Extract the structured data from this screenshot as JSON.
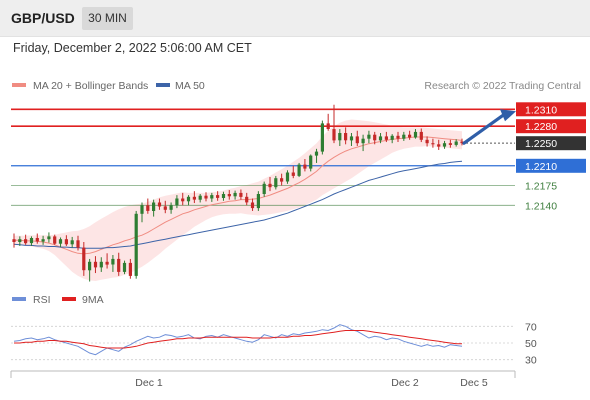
{
  "header": {
    "symbol": "GBP/USD",
    "timeframe": "30 MIN",
    "datetime": "Friday, December 2, 2022 5:06:00 AM CET"
  },
  "colors": {
    "bull": "#2e7d32",
    "bear": "#c62828",
    "ma20": "#f08c82",
    "band_fill": "#fcdcdc",
    "ma50": "#3d64a8",
    "resistance": "#e02020",
    "support": "#3f7f3f",
    "pivot": "#2f6fd6",
    "current": "#333333",
    "rsi": "#6e8fd8",
    "rsi_ma": "#e02020"
  },
  "chart_data": [
    {
      "type": "candlestick",
      "legend": [
        {
          "label": "MA 20 + Bollinger Bands",
          "color": "#f08c82"
        },
        {
          "label": "MA 50",
          "color": "#3d64a8"
        }
      ],
      "credit": "Research © 2022 Trading Central",
      "ylim": [
        1.199,
        1.233
      ],
      "x_labels": [
        "Dec 1",
        "Dec 2",
        "Dec 5"
      ],
      "levels": [
        {
          "value": 1.231,
          "label": "1.2310",
          "kind": "resistance"
        },
        {
          "value": 1.228,
          "label": "1.2280",
          "kind": "resistance"
        },
        {
          "value": 1.225,
          "label": "1.2250",
          "kind": "current"
        },
        {
          "value": 1.221,
          "label": "1.2210",
          "kind": "pivot"
        },
        {
          "value": 1.2175,
          "label": "1.2175",
          "kind": "support"
        },
        {
          "value": 1.214,
          "label": "1.2140",
          "kind": "support"
        }
      ],
      "forecast": {
        "from": 1.225,
        "to": 1.231
      },
      "ohlc": [
        [
          1.208,
          1.209,
          1.2065,
          1.2075
        ],
        [
          1.2075,
          1.2085,
          1.2068,
          1.208
        ],
        [
          1.208,
          1.2088,
          1.207,
          1.2073
        ],
        [
          1.2073,
          1.2085,
          1.2068,
          1.2082
        ],
        [
          1.2082,
          1.209,
          1.2072,
          1.2076
        ],
        [
          1.2076,
          1.2086,
          1.207,
          1.208
        ],
        [
          1.208,
          1.2092,
          1.2074,
          1.2085
        ],
        [
          1.2085,
          1.2088,
          1.207,
          1.2072
        ],
        [
          1.2072,
          1.2083,
          1.2066,
          1.208
        ],
        [
          1.208,
          1.2087,
          1.2068,
          1.2071
        ],
        [
          1.2071,
          1.2084,
          1.2065,
          1.2078
        ],
        [
          1.2078,
          1.2086,
          1.206,
          1.2065
        ],
        [
          1.2065,
          1.2075,
          1.2015,
          1.2025
        ],
        [
          1.2025,
          1.2045,
          1.2005,
          1.204
        ],
        [
          1.204,
          1.205,
          1.202,
          1.203
        ],
        [
          1.203,
          1.2048,
          1.2022,
          1.204
        ],
        [
          1.204,
          1.2055,
          1.2028,
          1.2035
        ],
        [
          1.2035,
          1.2052,
          1.2022,
          1.2045
        ],
        [
          1.2045,
          1.2056,
          1.2015,
          1.2022
        ],
        [
          1.2022,
          1.2042,
          1.2018,
          1.2038
        ],
        [
          1.2038,
          1.2045,
          1.201,
          1.2015
        ],
        [
          1.2015,
          1.213,
          1.201,
          1.2125
        ],
        [
          1.2125,
          1.2145,
          1.211,
          1.214
        ],
        [
          1.214,
          1.2152,
          1.2125,
          1.213
        ],
        [
          1.213,
          1.215,
          1.212,
          1.2145
        ],
        [
          1.2145,
          1.2152,
          1.2132,
          1.2138
        ],
        [
          1.2138,
          1.2148,
          1.2126,
          1.2132
        ],
        [
          1.2132,
          1.2145,
          1.2125,
          1.214
        ],
        [
          1.214,
          1.2158,
          1.2135,
          1.2152
        ],
        [
          1.2152,
          1.2162,
          1.214,
          1.2147
        ],
        [
          1.2147,
          1.2158,
          1.214,
          1.2155
        ],
        [
          1.2155,
          1.2165,
          1.2144,
          1.215
        ],
        [
          1.215,
          1.216,
          1.2145,
          1.2157
        ],
        [
          1.2157,
          1.2163,
          1.2147,
          1.2152
        ],
        [
          1.2152,
          1.2162,
          1.2146,
          1.2158
        ],
        [
          1.2158,
          1.2165,
          1.2148,
          1.2153
        ],
        [
          1.2153,
          1.2164,
          1.2148,
          1.216
        ],
        [
          1.216,
          1.2167,
          1.215,
          1.2156
        ],
        [
          1.2156,
          1.2166,
          1.215,
          1.2162
        ],
        [
          1.2162,
          1.2168,
          1.215,
          1.2155
        ],
        [
          1.2155,
          1.2162,
          1.214,
          1.2145
        ],
        [
          1.2145,
          1.2152,
          1.213,
          1.2135
        ],
        [
          1.2135,
          1.2165,
          1.213,
          1.216
        ],
        [
          1.216,
          1.2182,
          1.2155,
          1.2178
        ],
        [
          1.2178,
          1.219,
          1.2165,
          1.2172
        ],
        [
          1.2172,
          1.2192,
          1.2168,
          1.2188
        ],
        [
          1.2188,
          1.2196,
          1.2175,
          1.2182
        ],
        [
          1.2182,
          1.2202,
          1.2178,
          1.2198
        ],
        [
          1.2198,
          1.221,
          1.2188,
          1.2192
        ],
        [
          1.2192,
          1.2215,
          1.219,
          1.2212
        ],
        [
          1.2212,
          1.2222,
          1.22,
          1.2205
        ],
        [
          1.2205,
          1.223,
          1.22,
          1.2228
        ],
        [
          1.2228,
          1.224,
          1.2215,
          1.2235
        ],
        [
          1.2235,
          1.229,
          1.223,
          1.2285
        ],
        [
          1.2285,
          1.2302,
          1.2272,
          1.2275
        ],
        [
          1.2275,
          1.2318,
          1.225,
          1.2255
        ],
        [
          1.2255,
          1.2275,
          1.2245,
          1.2268
        ],
        [
          1.2268,
          1.2278,
          1.2248,
          1.2255
        ],
        [
          1.2255,
          1.2268,
          1.2245,
          1.2262
        ],
        [
          1.2262,
          1.2272,
          1.2245,
          1.225
        ],
        [
          1.225,
          1.2265,
          1.2236,
          1.2258
        ],
        [
          1.2258,
          1.2272,
          1.225,
          1.2265
        ],
        [
          1.2265,
          1.227,
          1.2248,
          1.2255
        ],
        [
          1.2255,
          1.2268,
          1.225,
          1.2262
        ],
        [
          1.2262,
          1.227,
          1.2252,
          1.2256
        ],
        [
          1.2256,
          1.2266,
          1.225,
          1.2263
        ],
        [
          1.2263,
          1.227,
          1.2252,
          1.2258
        ],
        [
          1.2258,
          1.227,
          1.2254,
          1.2265
        ],
        [
          1.2265,
          1.2272,
          1.2256,
          1.226
        ],
        [
          1.226,
          1.2275,
          1.2258,
          1.227
        ],
        [
          1.227,
          1.2276,
          1.2252,
          1.2256
        ],
        [
          1.2256,
          1.2262,
          1.2244,
          1.225
        ],
        [
          1.225,
          1.2258,
          1.2242,
          1.2248
        ],
        [
          1.2248,
          1.2256,
          1.2238,
          1.2244
        ],
        [
          1.2244,
          1.2254,
          1.224,
          1.225
        ],
        [
          1.225,
          1.2256,
          1.2242,
          1.2247
        ],
        [
          1.2247,
          1.2257,
          1.2244,
          1.2253
        ],
        [
          1.2253,
          1.2258,
          1.2246,
          1.225
        ]
      ],
      "ma20": [
        1.2078,
        1.2078,
        1.2077,
        1.2077,
        1.2076,
        1.2075,
        1.2073,
        1.207,
        1.2066,
        1.2062,
        1.2058,
        1.2055,
        1.2054,
        1.2055,
        1.2058,
        1.2062,
        1.2066,
        1.207,
        1.2073,
        1.2077,
        1.208,
        1.2084,
        1.2087,
        1.2092,
        1.2098,
        1.2104,
        1.211,
        1.2115,
        1.212,
        1.2125,
        1.2128,
        1.2132,
        1.2135,
        1.2138,
        1.2141,
        1.2143,
        1.2145,
        1.2147,
        1.2148,
        1.215,
        1.215,
        1.2151,
        1.2152,
        1.2155,
        1.2158,
        1.2162,
        1.2166,
        1.217,
        1.2175,
        1.218,
        1.2186,
        1.2193,
        1.22,
        1.221,
        1.2218,
        1.2225,
        1.2231,
        1.2236,
        1.224,
        1.2243,
        1.2246,
        1.2249,
        1.2251,
        1.2253,
        1.2255,
        1.2257,
        1.2258,
        1.2259,
        1.226,
        1.2261,
        1.2261,
        1.2261,
        1.226,
        1.2259,
        1.2258,
        1.2257,
        1.2256,
        1.2255
      ],
      "band_width": [
        0.0008,
        0.0008,
        0.0009,
        0.001,
        0.0011,
        0.0012,
        0.0014,
        0.0018,
        0.0024,
        0.003,
        0.0036,
        0.004,
        0.0044,
        0.0048,
        0.0052,
        0.0054,
        0.0056,
        0.0058,
        0.006,
        0.006,
        0.006,
        0.0058,
        0.0056,
        0.0054,
        0.0052,
        0.005,
        0.0047,
        0.0044,
        0.0041,
        0.0038,
        0.0034,
        0.003,
        0.0027,
        0.0024,
        0.0022,
        0.0021,
        0.0021,
        0.0022,
        0.0023,
        0.0024,
        0.0026,
        0.0028,
        0.003,
        0.0032,
        0.0034,
        0.0036,
        0.0038,
        0.004,
        0.0042,
        0.0044,
        0.0046,
        0.0048,
        0.005,
        0.0052,
        0.0054,
        0.0055,
        0.0055,
        0.0054,
        0.0052,
        0.0048,
        0.0044,
        0.004,
        0.0036,
        0.0032,
        0.0028,
        0.0024,
        0.0021,
        0.0019,
        0.0018,
        0.0017,
        0.0017,
        0.0016,
        0.0016,
        0.0016,
        0.0016,
        0.0016,
        0.0016,
        0.0016
      ],
      "ma50": [
        1.2071,
        1.207,
        1.2069,
        1.2069,
        1.2068,
        1.2068,
        1.2067,
        1.2067,
        1.2066,
        1.2066,
        1.2065,
        1.2065,
        1.2064,
        1.2064,
        1.2064,
        1.2064,
        1.2065,
        1.2065,
        1.2066,
        1.2067,
        1.2068,
        1.207,
        1.2072,
        1.2074,
        1.2076,
        1.2078,
        1.208,
        1.2082,
        1.2084,
        1.2086,
        1.2088,
        1.209,
        1.2092,
        1.2094,
        1.2096,
        1.2098,
        1.21,
        1.2102,
        1.2104,
        1.2106,
        1.2108,
        1.211,
        1.2112,
        1.2114,
        1.2117,
        1.212,
        1.2123,
        1.2126,
        1.213,
        1.2134,
        1.2138,
        1.2142,
        1.2146,
        1.215,
        1.2155,
        1.216,
        1.2164,
        1.2168,
        1.2172,
        1.2176,
        1.218,
        1.2184,
        1.2187,
        1.219,
        1.2193,
        1.2196,
        1.2199,
        1.2201,
        1.2203,
        1.2205,
        1.2207,
        1.2209,
        1.2211,
        1.2213,
        1.2214,
        1.2216,
        1.2217,
        1.2218
      ]
    },
    {
      "type": "line",
      "legend": [
        {
          "label": "RSI",
          "color": "#6e8fd8"
        },
        {
          "label": "9MA",
          "color": "#e02020"
        }
      ],
      "ylim": [
        20,
        80
      ],
      "y_ticks": [
        70,
        50,
        30
      ],
      "series": [
        {
          "name": "RSI",
          "values": [
            52,
            53,
            55,
            56,
            54,
            55,
            57,
            54,
            52,
            50,
            48,
            46,
            42,
            38,
            36,
            40,
            44,
            42,
            40,
            45,
            48,
            52,
            55,
            58,
            56,
            57,
            60,
            59,
            57,
            58,
            60,
            56,
            55,
            58,
            59,
            57,
            60,
            58,
            56,
            54,
            52,
            51,
            54,
            60,
            58,
            56,
            60,
            58,
            61,
            60,
            62,
            63,
            64,
            66,
            65,
            68,
            72,
            70,
            66,
            64,
            60,
            56,
            58,
            57,
            54,
            56,
            55,
            52,
            50,
            48,
            46,
            48,
            46,
            47,
            45,
            48,
            47,
            46
          ]
        },
        {
          "name": "9MA",
          "values": [
            50,
            50,
            51,
            51,
            52,
            52,
            53,
            53,
            52,
            52,
            51,
            50,
            49,
            47,
            46,
            45,
            44,
            44,
            44,
            44,
            45,
            46,
            48,
            50,
            51,
            52,
            53,
            54,
            55,
            55,
            56,
            56,
            56,
            57,
            57,
            57,
            57,
            57,
            57,
            57,
            57,
            56,
            56,
            56,
            56,
            57,
            57,
            57,
            58,
            58,
            59,
            59,
            60,
            61,
            62,
            63,
            64,
            65,
            65,
            65,
            65,
            64,
            63,
            62,
            61,
            60,
            59,
            58,
            57,
            56,
            55,
            54,
            53,
            52,
            51,
            50,
            49,
            49
          ]
        }
      ]
    }
  ]
}
